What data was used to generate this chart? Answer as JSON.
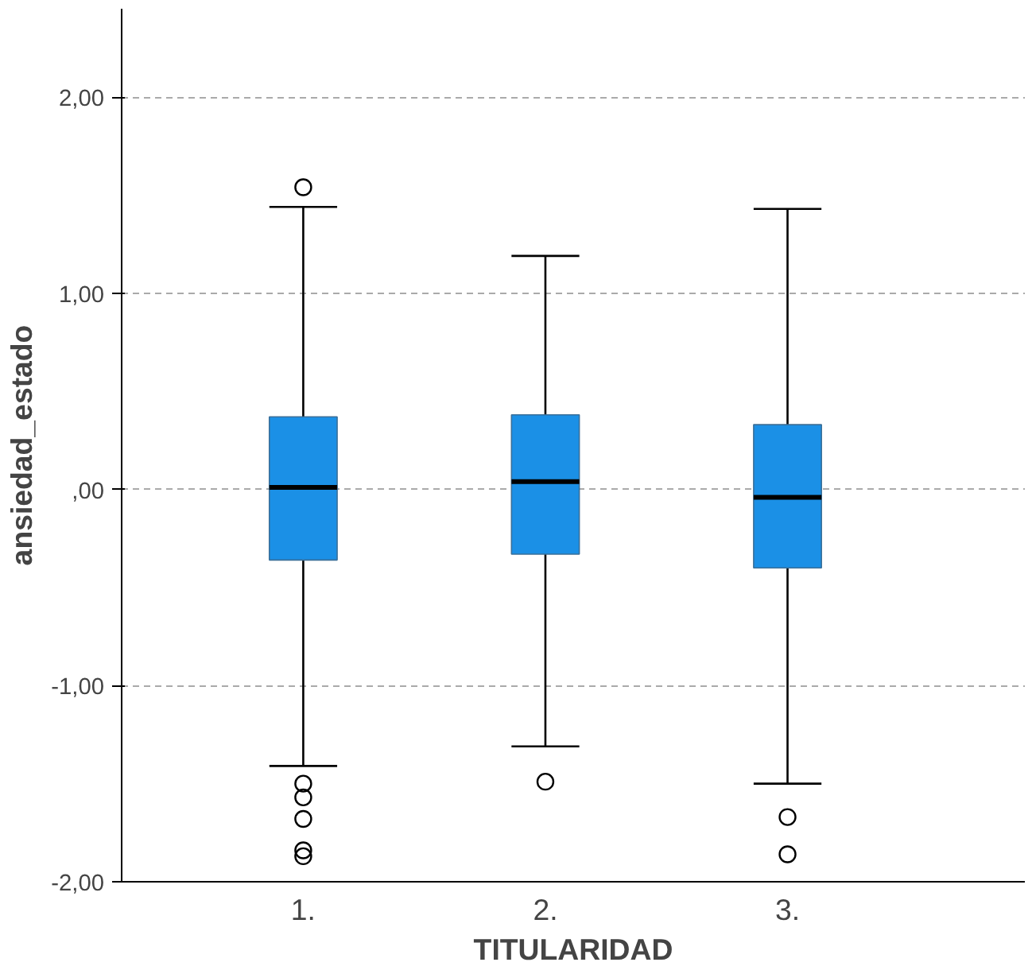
{
  "chart_data": {
    "type": "box",
    "xlabel": "TITULARIDAD",
    "ylabel": "ansiedad_estado",
    "categories": [
      "1.",
      "2.",
      "3."
    ],
    "color": "#1b90e6",
    "boxes": [
      {
        "low": -1.41,
        "q1": -0.36,
        "median": 0.01,
        "q3": 0.37,
        "high": 1.44,
        "outliers": [
          1.54,
          -1.5,
          -1.57,
          -1.68,
          -1.84,
          -1.87
        ]
      },
      {
        "low": -1.31,
        "q1": -0.33,
        "median": 0.04,
        "q3": 0.38,
        "high": 1.19,
        "outliers": [
          -1.49
        ]
      },
      {
        "low": -1.5,
        "q1": -0.4,
        "median": -0.04,
        "q3": 0.33,
        "high": 1.43,
        "outliers": [
          -1.67,
          -1.86
        ]
      }
    ],
    "ylim": [
      -2.0,
      2.45
    ],
    "yticks": [
      {
        "value": 2,
        "label": "2,00"
      },
      {
        "value": 1,
        "label": "1,00"
      },
      {
        "value": 0,
        "label": ",00"
      },
      {
        "value": -1,
        "label": "-1,00"
      },
      {
        "value": -2,
        "label": "-2,00"
      }
    ],
    "grid": "y"
  }
}
